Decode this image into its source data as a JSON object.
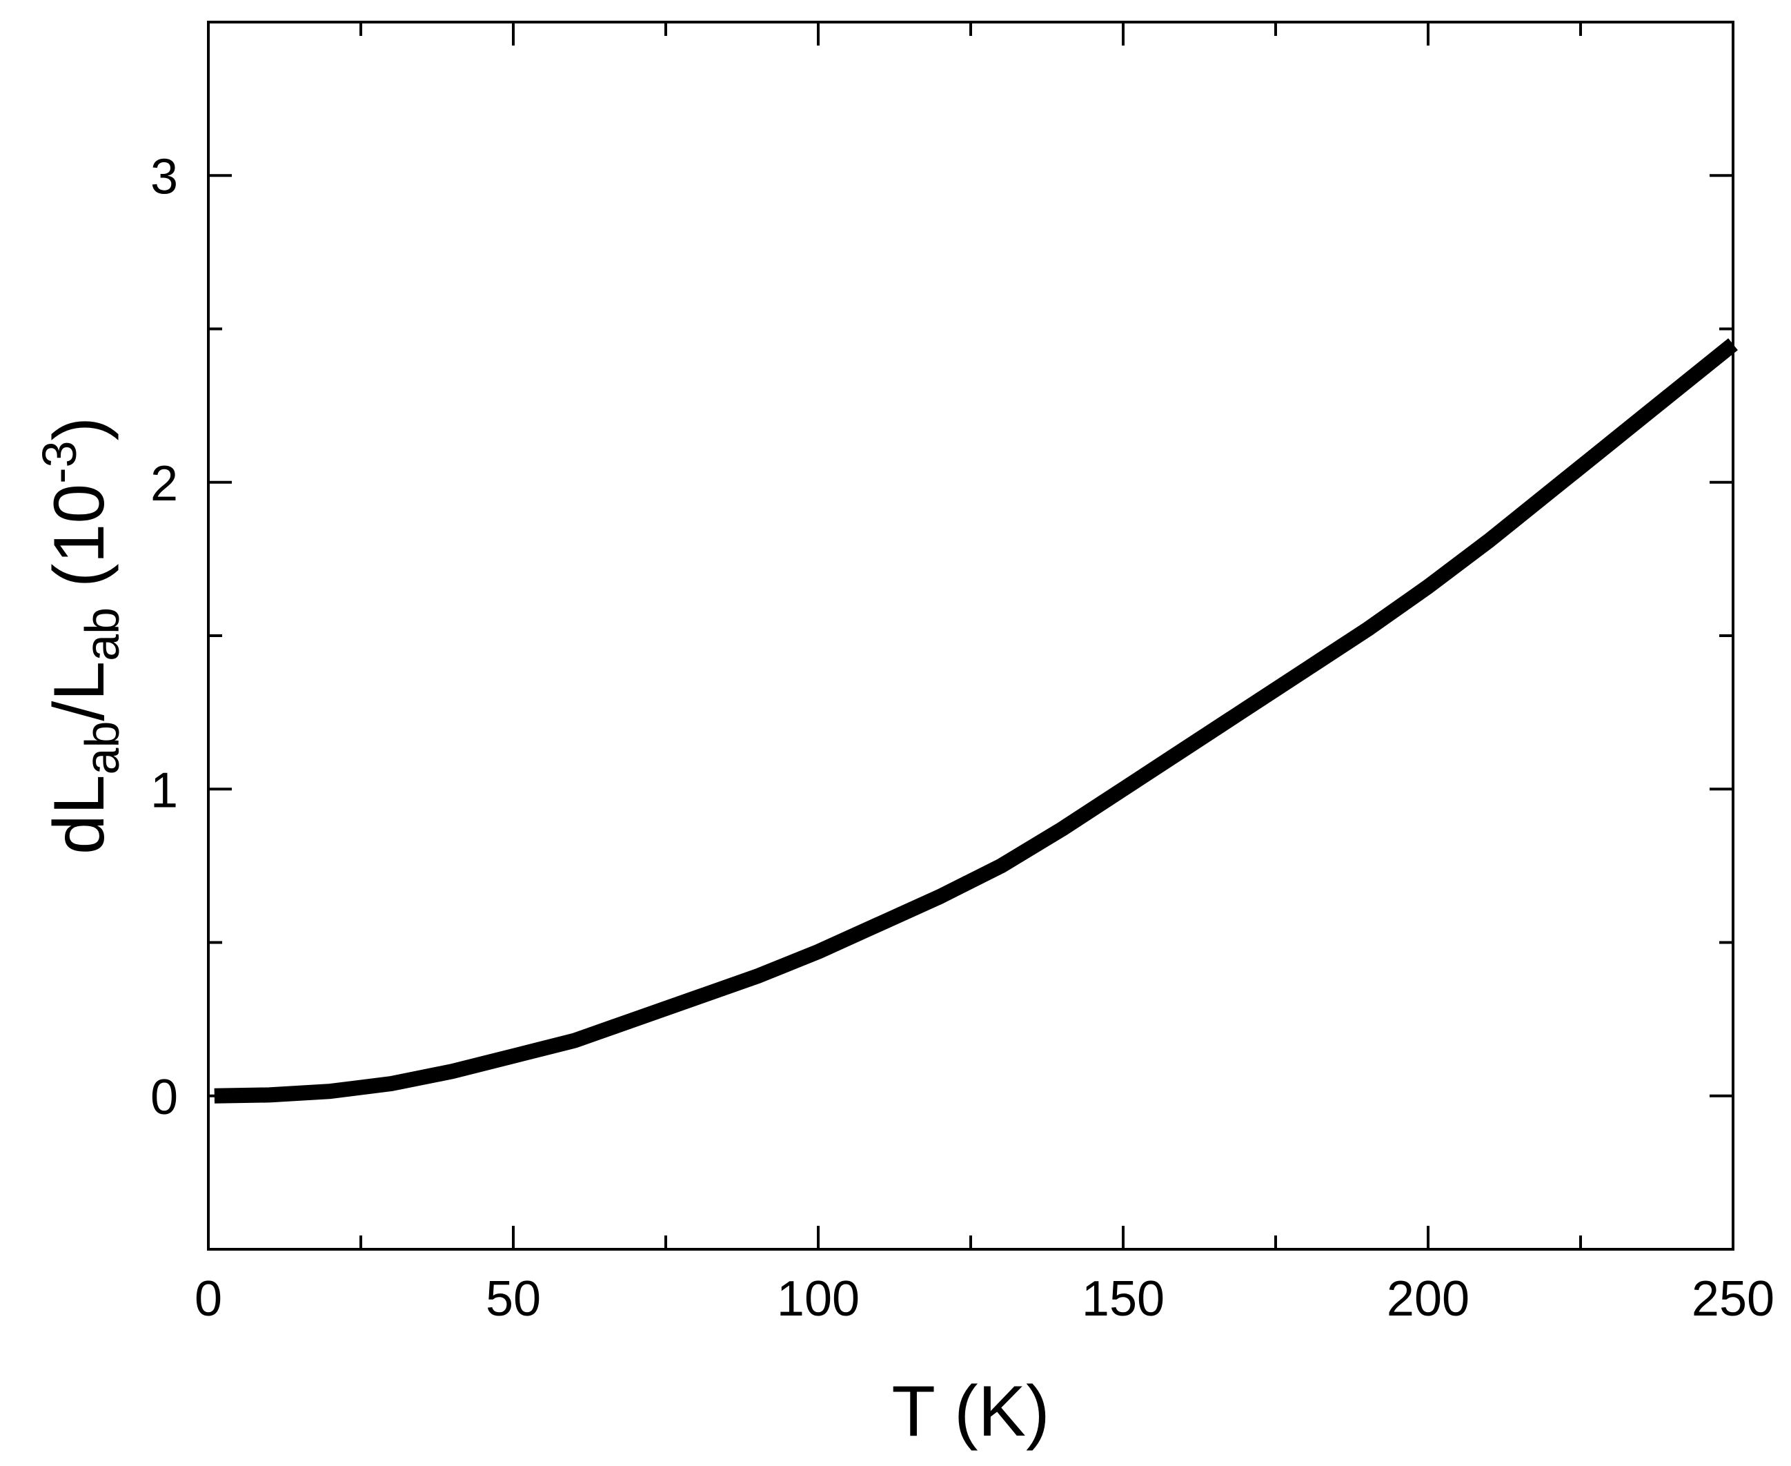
{
  "chart_data": {
    "type": "line",
    "title": "",
    "xlabel": "T (K)",
    "ylabel": {
      "base": "dL",
      "sub1": "ab",
      "slash": "/L",
      "sub2": "ab",
      "unit_open": " (10",
      "unit_sup": "-3",
      "unit_close": ")"
    },
    "xlim": [
      0,
      250
    ],
    "ylim": [
      -0.5,
      3.5
    ],
    "x_ticks": [
      0,
      50,
      100,
      150,
      200,
      250
    ],
    "x_tick_labels": [
      "0",
      "50",
      "100",
      "150",
      "200",
      "250"
    ],
    "x_minor_ticks": [
      25,
      75,
      125,
      175,
      225
    ],
    "y_ticks": [
      0,
      1,
      2,
      3
    ],
    "y_tick_labels": [
      "0",
      "1",
      "2",
      "3"
    ],
    "y_minor_ticks": [
      0.5,
      1.5,
      2.5
    ],
    "grid": false,
    "legend": "none",
    "line_color": "#000000",
    "series": [
      {
        "x": [
          1,
          10,
          20,
          30,
          40,
          50,
          60,
          70,
          80,
          90,
          100,
          110,
          120,
          130,
          140,
          150,
          160,
          170,
          180,
          190,
          200,
          210,
          220,
          230,
          240,
          250
        ],
        "y": [
          0.0,
          0.003,
          0.015,
          0.04,
          0.08,
          0.13,
          0.18,
          0.25,
          0.32,
          0.39,
          0.47,
          0.56,
          0.65,
          0.75,
          0.87,
          1.0,
          1.13,
          1.26,
          1.39,
          1.52,
          1.66,
          1.81,
          1.97,
          2.13,
          2.29,
          2.45
        ]
      }
    ]
  }
}
